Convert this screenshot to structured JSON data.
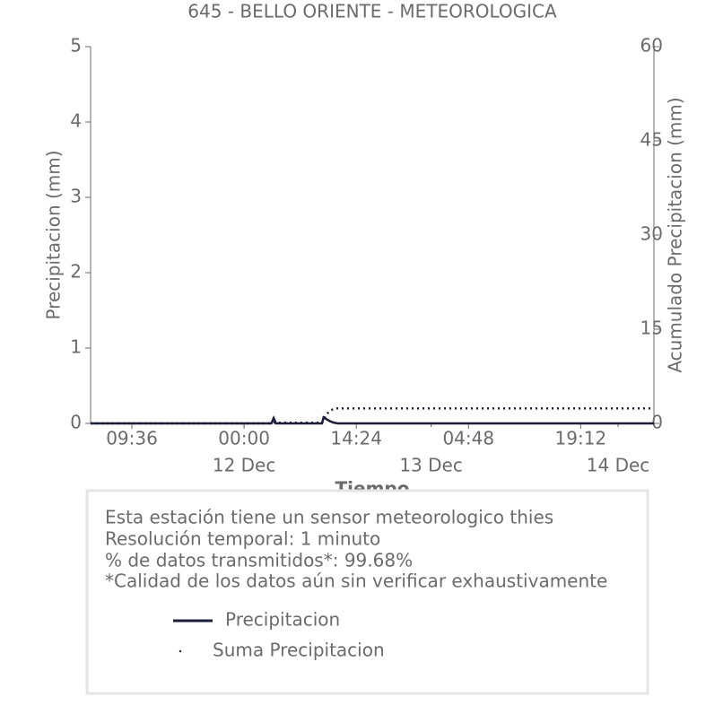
{
  "chart_data": {
    "type": "line",
    "title": "645 - BELLO ORIENTE - METEOROLOGICA",
    "xlabel": "Tiempo",
    "ylabel": "Precipitacion (mm)",
    "y2label": "Acumulado Precipitacion (mm)",
    "x": [
      4.3,
      27.5,
      27.8,
      28.1,
      34,
      34.2,
      34.5,
      35,
      35.5,
      36,
      76.6
    ],
    "series": [
      {
        "name": "Precipitacion",
        "color": "#1c1f3a",
        "style": "solid",
        "axis": "y",
        "values": [
          0,
          0,
          0.07,
          0,
          0,
          0.08,
          0.06,
          0.03,
          0.01,
          0,
          0
        ]
      },
      {
        "name": "Suma Precipitacion",
        "color": "#1c1f3a",
        "style": "dotted",
        "axis": "y2",
        "values": [
          0,
          0,
          0.1,
          0.1,
          0.1,
          0.5,
          1.3,
          2.0,
          2.3,
          2.4,
          2.4
        ]
      }
    ],
    "xlim": [
      4.3,
      76.6
    ],
    "xticks": [
      {
        "value": 9.6,
        "label": "09:36"
      },
      {
        "value": 24,
        "label": "00:00"
      },
      {
        "value": 38.4,
        "label": "14:24"
      },
      {
        "value": 52.8,
        "label": "04:48"
      },
      {
        "value": 67.2,
        "label": "19:12"
      }
    ],
    "xticks_secondary": [
      {
        "value": 24,
        "label": "12 Dec"
      },
      {
        "value": 48,
        "label": "13 Dec"
      },
      {
        "value": 72,
        "label": "14 Dec"
      }
    ],
    "ylim": [
      0,
      5
    ],
    "yticks": [
      0,
      1,
      2,
      3,
      4,
      5
    ],
    "y2lim": [
      0,
      60
    ],
    "y2ticks": [
      0,
      15,
      30,
      45,
      60
    ],
    "info": [
      "Esta estación tiene un sensor meteorologico thies",
      "Resolución temporal: 1 minuto",
      "% de datos transmitidos*: 99.68%",
      "*Calidad de los datos aún sin verificar exhaustivamente"
    ]
  }
}
